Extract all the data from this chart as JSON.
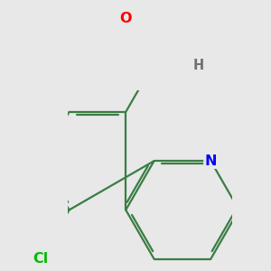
{
  "background_color": "#e8e8e8",
  "bond_color": "#3a7d44",
  "bond_width": 1.6,
  "atom_colors": {
    "O": "#ff0000",
    "N": "#0000ff",
    "Cl": "#00bb00",
    "H": "#707070"
  },
  "font_size": 10.5,
  "fig_width": 3.0,
  "fig_height": 3.0,
  "dpi": 100
}
